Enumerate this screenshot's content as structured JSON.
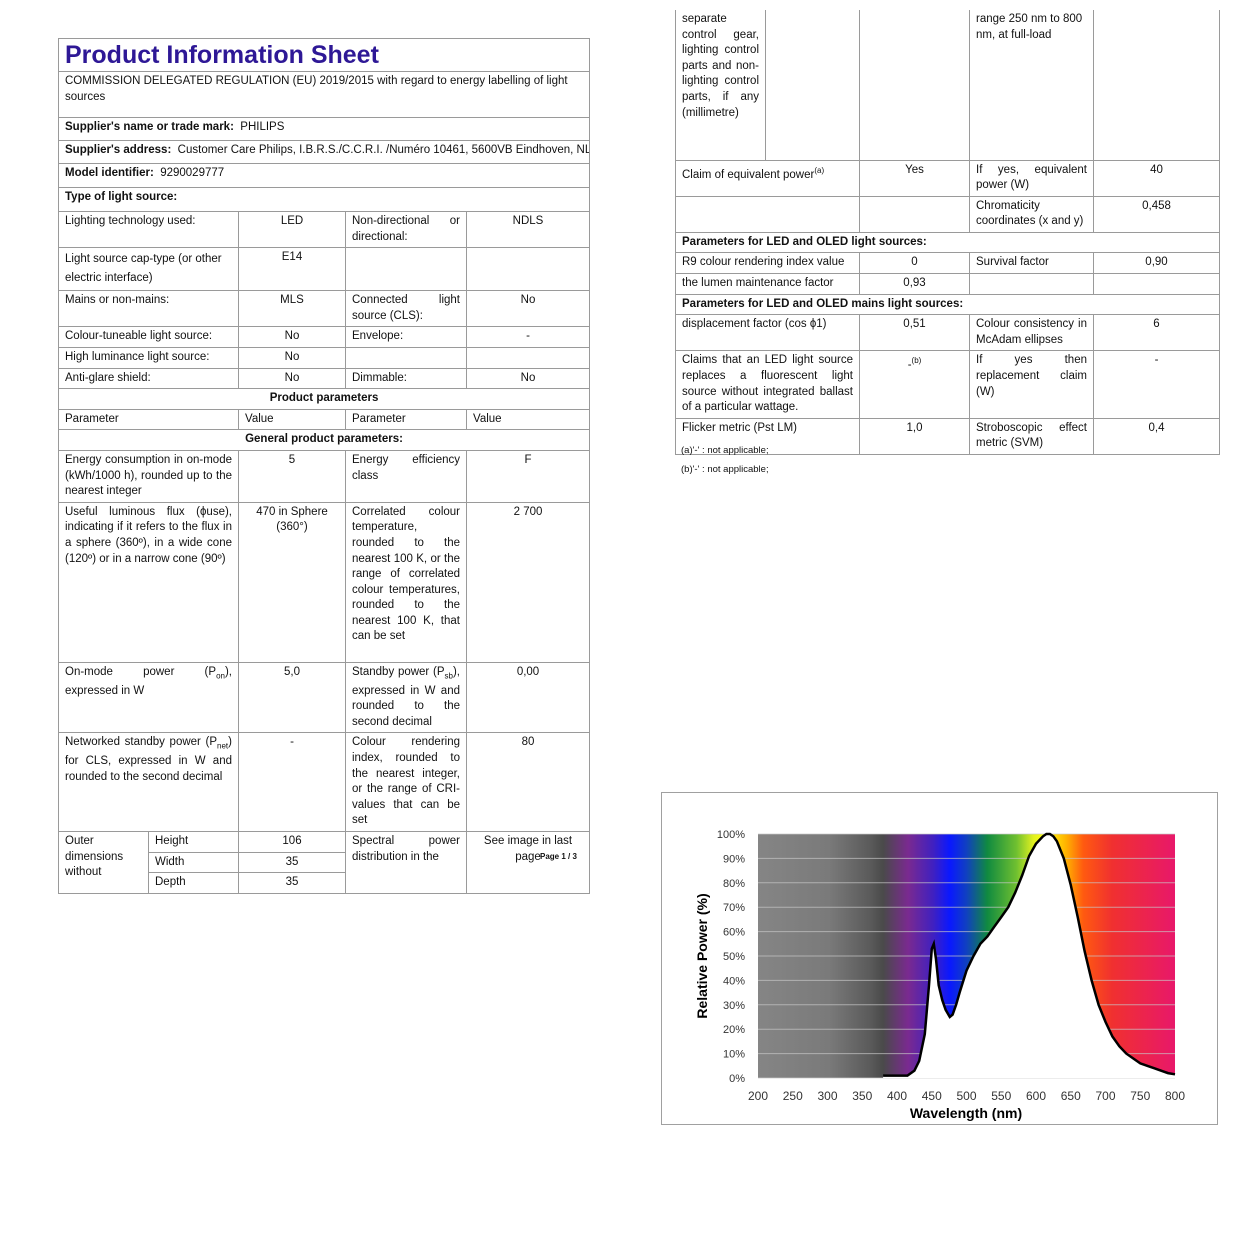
{
  "left": {
    "title": "Product Information Sheet",
    "regulation": "COMMISSION DELEGATED REGULATION (EU) 2019/2015 with regard to energy labelling of light sources",
    "supplier_name_label": "Supplier's name or trade mark:",
    "supplier_name": "PHILIPS",
    "address_label": "Supplier's address:",
    "address": "Customer Care Philips, I.B.R.S./C.C.R.I. /Numéro 10461, 5600VB Eindhoven, NL",
    "model_label": "Model identifier:",
    "model": "9290029777",
    "type_label": "Type of light source:",
    "type_rows": [
      [
        "Lighting technology used:",
        "LED",
        "Non-directional or directional:",
        "NDLS"
      ],
      [
        "Light source cap-type (or other electric interface)",
        "E14",
        "",
        ""
      ],
      [
        "Mains or non-mains:",
        "MLS",
        "Connected light source (CLS):",
        "No"
      ],
      [
        "Colour-tuneable light source:",
        "No",
        "Envelope:",
        "-"
      ],
      [
        "High luminance light source:",
        "No",
        "",
        ""
      ],
      [
        "Anti-glare shield:",
        "No",
        "Dimmable:",
        "No"
      ]
    ],
    "product_parameters": "Product parameters",
    "headers": [
      "Parameter",
      "Value",
      "Parameter",
      "Value"
    ],
    "general_parameters": "General product parameters:",
    "param_rows": [
      [
        "Energy consumption in on-mode (kWh/1000 h), rounded up to the nearest integer",
        "5",
        "Energy efficiency class",
        "F"
      ],
      [
        "Useful luminous flux (ϕuse), indicating if it refers to the flux in a sphere (360º), in a wide cone (120º) or in a narrow cone (90º)",
        "470 in Sphere (360°)",
        "Correlated colour temperature, rounded to the nearest 100 K, or the range of correlated colour temperatures, rounded to the nearest 100 K, that can be set",
        "2 700"
      ],
      [
        "On-mode power (P",
        "5,0",
        "Standby power (P",
        "0,00"
      ],
      [
        "Networked standby power (P",
        "-",
        "Colour rendering index, rounded to the nearest integer, or the range of CRI-values that can be set",
        "80"
      ]
    ],
    "on_mode_sub": "on",
    "on_mode_tail": "), expressed in W",
    "standby_sub": "sb",
    "standby_tail": "), expressed in W and rounded to the second decimal",
    "net_sub": "net",
    "net_tail": ") for CLS, expressed in W and rounded to the second decimal",
    "dims_label": "Outer dimensions without",
    "dims": [
      [
        "Height",
        "106"
      ],
      [
        "Width",
        "35"
      ],
      [
        "Depth",
        "35"
      ]
    ],
    "spd_label": "Spectral power distribution in the",
    "spd_value": "See image in last page",
    "page": "Page 1 / 3"
  },
  "right": {
    "top_row": [
      "separate control gear, lighting control parts and non-lighting control parts, if any (millimetre)",
      "",
      "",
      "range 250 nm to 800 nm, at full-load",
      ""
    ],
    "claim_label": "Claim of equivalent power",
    "claim_sup": "(a)",
    "claim_value": "Yes",
    "equiv_label": "If yes, equivalent power (W)",
    "equiv_value": "40",
    "chroma_label": "Chromaticity coordinates (x and y)",
    "chroma_value": "0,458",
    "led_section": "Parameters for LED and OLED light sources:",
    "led_rows": [
      [
        "R9 colour rendering index value",
        "0",
        "Survival factor",
        "0,90"
      ],
      [
        "the lumen maintenance factor",
        "0,93",
        "",
        ""
      ]
    ],
    "mains_section": "Parameters for LED and OLED mains light sources:",
    "mains_rows": [
      [
        "displacement factor (cos ϕ1)",
        "0,51",
        "Colour consistency in McAdam ellipses",
        "6"
      ],
      [
        "Claims that an LED light source replaces a fluorescent light source without integrated ballast of a particular wattage.",
        "-",
        "If yes then replacement claim (W)",
        "-"
      ],
      [
        "Flicker metric (Pst LM)",
        "1,0",
        "Stroboscopic effect metric (SVM)",
        "0,4"
      ]
    ],
    "claims_sup": "(b)",
    "footnotes": [
      "(a)'-' : not applicable;",
      "(b)'-' : not applicable;"
    ]
  },
  "chart_data": {
    "type": "area",
    "xlabel": "Wavelength (nm)",
    "ylabel": "Relative Power (%)",
    "xlim": [
      200,
      800
    ],
    "ylim": [
      0,
      100
    ],
    "x_ticks": [
      "200",
      "250",
      "300",
      "350",
      "400",
      "450",
      "500",
      "550",
      "600",
      "650",
      "700",
      "750",
      "800"
    ],
    "y_ticks": [
      "0%",
      "10%",
      "20%",
      "30%",
      "40%",
      "50%",
      "60%",
      "70%",
      "80%",
      "90%",
      "100%"
    ],
    "grid": true,
    "background": "visible spectrum gradient",
    "x": [
      380,
      400,
      415,
      425,
      432,
      440,
      446,
      450,
      453,
      456,
      460,
      465,
      470,
      476,
      480,
      485,
      490,
      500,
      510,
      520,
      530,
      540,
      550,
      560,
      570,
      580,
      590,
      600,
      610,
      615,
      620,
      625,
      630,
      640,
      650,
      660,
      670,
      680,
      690,
      700,
      710,
      720,
      730,
      740,
      750,
      760,
      770,
      780,
      790,
      800
    ],
    "y": [
      1,
      1,
      1,
      3,
      7,
      18,
      38,
      53,
      55,
      49,
      38,
      32,
      28,
      25,
      26,
      30,
      35,
      44,
      50,
      55,
      58,
      62,
      66,
      70,
      76,
      83,
      91,
      96,
      99,
      100,
      100,
      99,
      97,
      90,
      79,
      66,
      52,
      40,
      30,
      23,
      17,
      13,
      10,
      8,
      6,
      5,
      4,
      3,
      2,
      1.5
    ]
  }
}
